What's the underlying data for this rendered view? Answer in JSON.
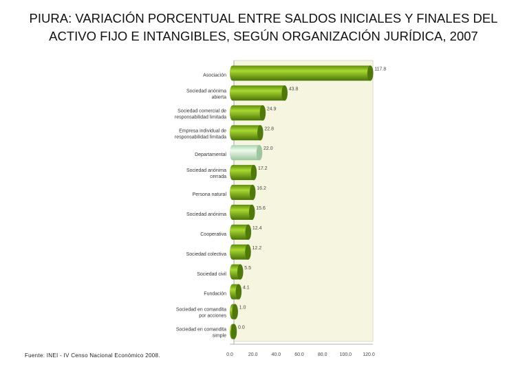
{
  "title": "PIURA: VARIACIÓN PORCENTUAL ENTRE SALDOS INICIALES Y FINALES DEL ACTIVO FIJO E INTANGIBLES, SEGÚN ORGANIZACIÓN JURÍDICA, 2007",
  "source": "Fuente: INEI - IV Censo Nacional Económico 2008.",
  "colors": {
    "bar": "#7ab317",
    "bar_dark": "#4f7a0a",
    "highlight": "#d8f0d8",
    "highlight_dark": "#9fc79f",
    "wall": "#f6f6e0"
  },
  "chart_data": {
    "type": "bar",
    "orientation": "horizontal",
    "categories": [
      [
        "Asociación"
      ],
      [
        "Sociedad anónima",
        "abierta"
      ],
      [
        "Sociedad comercial de",
        "responsabilidad limitada"
      ],
      [
        "Empresa individual de",
        "responsabilidad limitada"
      ],
      [
        "Departamental"
      ],
      [
        "Sociedad anónima",
        "cerrada"
      ],
      [
        "Persona natural"
      ],
      [
        "Sociedad anónima"
      ],
      [
        "Cooperativa"
      ],
      [
        "Sociedad colectiva"
      ],
      [
        "Sociedad civil"
      ],
      [
        "Fundación"
      ],
      [
        "Sociedad en comandita",
        "por acciones"
      ],
      [
        "Sociedad en comandita",
        "simple"
      ]
    ],
    "values": [
      117.8,
      43.8,
      24.9,
      22.8,
      22.0,
      17.2,
      16.2,
      15.6,
      12.4,
      12.2,
      5.5,
      4.1,
      1.0,
      0.0
    ],
    "value_labels": [
      "117.8",
      "43.8",
      "24.9",
      "22.8",
      "22.0",
      "17.2",
      "16.2",
      "15.6",
      "12.4",
      "12.2",
      "5.5",
      "4.1",
      "1.0",
      "0.0"
    ],
    "highlight_category": "Departamental",
    "xlim": [
      0,
      120
    ],
    "xticks": [
      "0.0",
      "20.0",
      "40.0",
      "60.0",
      "80.0",
      "100.0",
      "120.0"
    ],
    "grid": false
  }
}
